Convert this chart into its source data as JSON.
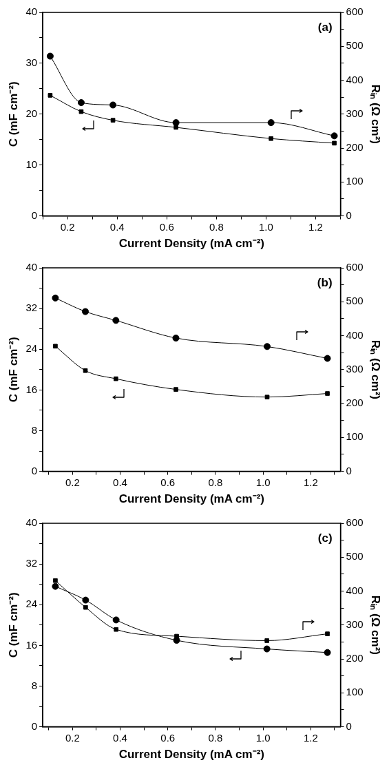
{
  "chart_data": [
    {
      "type": "line",
      "xlabel": "Current Density (mA cm⁻²)",
      "ylabel": "C (mF cm⁻²)",
      "y2label": "Rᵢₙ (Ω cm²)",
      "annotations": [
        "(a)"
      ],
      "xlim": [
        0.1,
        1.3
      ],
      "xticks": [
        {
          "value": 0.1,
          "label": null
        },
        0.2,
        {
          "value": 0.3,
          "label": null
        },
        0.4,
        {
          "value": 0.5,
          "label": null
        },
        0.6,
        {
          "value": 0.7,
          "label": null
        },
        0.8,
        {
          "value": 0.9,
          "label": null
        },
        {
          "value": 1,
          "label": "1.0"
        },
        {
          "value": 1.1,
          "label": null
        },
        1.2,
        {
          "value": 1.3,
          "label": null
        }
      ],
      "ylim": [
        0,
        40
      ],
      "yticks": [
        0,
        {
          "value": 5,
          "label": null
        },
        10,
        {
          "value": 15,
          "label": null
        },
        20,
        {
          "value": 25,
          "label": null
        },
        30,
        {
          "value": 35,
          "label": null
        },
        40
      ],
      "y2lim": [
        0,
        600
      ],
      "y2ticks": [
        0,
        {
          "value": 50,
          "label": null
        },
        100,
        {
          "value": 150,
          "label": null
        },
        200,
        {
          "value": 250,
          "label": null
        },
        300,
        {
          "value": 350,
          "label": null
        },
        400,
        {
          "value": 450,
          "label": null
        },
        500,
        {
          "value": 550,
          "label": null
        },
        600
      ],
      "x": [
        0.13,
        0.255,
        0.383,
        0.637,
        1.02,
        1.275
      ],
      "grid": false,
      "legend": false,
      "series": [
        {
          "color": "#000000",
          "marker": "square",
          "values": [
            23.7,
            20.5,
            18.8,
            17.4,
            15.2,
            14.3
          ]
        },
        {
          "color": "#000000",
          "marker": "circle",
          "axis": "y2",
          "values": [
            471,
            334,
            327,
            275,
            275,
            236
          ]
        }
      ]
    },
    {
      "type": "line",
      "xlabel": "Current Density (mA cm⁻²)",
      "ylabel": "C (mF cm⁻²)",
      "y2label": "Rᵢₙ (Ω cm²)",
      "annotations": [
        "(b)"
      ],
      "xlim": [
        0.075,
        1.325
      ],
      "xticks": [
        {
          "value": 0.1,
          "label": null
        },
        0.2,
        {
          "value": 0.3,
          "label": null
        },
        0.4,
        {
          "value": 0.5,
          "label": null
        },
        0.6,
        {
          "value": 0.7,
          "label": null
        },
        0.8,
        {
          "value": 0.9,
          "label": null
        },
        {
          "value": 1,
          "label": "1.0"
        },
        {
          "value": 1.1,
          "label": null
        },
        1.2,
        {
          "value": 1.3,
          "label": null
        }
      ],
      "ylim": [
        0,
        40
      ],
      "yticks": [
        0,
        {
          "value": 4,
          "label": null
        },
        8,
        {
          "value": 12,
          "label": null
        },
        16,
        {
          "value": 20,
          "label": null
        },
        24,
        {
          "value": 28,
          "label": null
        },
        32,
        {
          "value": 36,
          "label": null
        },
        40
      ],
      "y2lim": [
        0,
        600
      ],
      "y2ticks": [
        0,
        {
          "value": 50,
          "label": null
        },
        100,
        {
          "value": 150,
          "label": null
        },
        200,
        {
          "value": 250,
          "label": null
        },
        300,
        {
          "value": 350,
          "label": null
        },
        400,
        {
          "value": 450,
          "label": null
        },
        500,
        {
          "value": 550,
          "label": null
        },
        600
      ],
      "x": [
        0.128,
        0.254,
        0.382,
        0.634,
        1.017,
        1.27
      ],
      "grid": false,
      "legend": false,
      "series": [
        {
          "color": "#000000",
          "marker": "square",
          "values": [
            24.6,
            19.8,
            18.2,
            16.1,
            14.6,
            15.3
          ]
        },
        {
          "color": "#000000",
          "marker": "circle",
          "axis": "y2",
          "values": [
            511,
            471,
            445,
            393,
            368,
            333
          ]
        }
      ]
    },
    {
      "type": "line",
      "xlabel": "Current Density (mA cm⁻²)",
      "ylabel": "C (mF cm⁻²)",
      "y2label": "Rᵢₙ (Ω cm²)",
      "annotations": [
        "(c)"
      ],
      "xlim": [
        0.075,
        1.325
      ],
      "xticks": [
        {
          "value": 0.1,
          "label": null
        },
        0.2,
        {
          "value": 0.3,
          "label": null
        },
        0.4,
        {
          "value": 0.5,
          "label": null
        },
        0.6,
        {
          "value": 0.7,
          "label": null
        },
        0.8,
        {
          "value": 0.9,
          "label": null
        },
        {
          "value": 1,
          "label": "1.0"
        },
        {
          "value": 1.1,
          "label": null
        },
        1.2,
        {
          "value": 1.3,
          "label": null
        }
      ],
      "ylim": [
        0,
        40
      ],
      "yticks": [
        0,
        {
          "value": 4,
          "label": null
        },
        8,
        {
          "value": 12,
          "label": null
        },
        16,
        {
          "value": 20,
          "label": null
        },
        24,
        {
          "value": 28,
          "label": null
        },
        32,
        {
          "value": 36,
          "label": null
        },
        40
      ],
      "y2lim": [
        0,
        600
      ],
      "y2ticks": [
        0,
        {
          "value": 50,
          "label": null
        },
        100,
        {
          "value": 150,
          "label": null
        },
        200,
        {
          "value": 250,
          "label": null
        },
        300,
        {
          "value": 350,
          "label": null
        },
        400,
        {
          "value": 450,
          "label": null
        },
        500,
        {
          "value": 550,
          "label": null
        },
        600
      ],
      "x": [
        0.128,
        0.255,
        0.383,
        0.637,
        1.016,
        1.27
      ],
      "grid": false,
      "legend": false,
      "series": [
        {
          "color": "#000000",
          "marker": "circle",
          "values": [
            27.6,
            24.9,
            21.0,
            17.0,
            15.3,
            14.6
          ]
        },
        {
          "color": "#000000",
          "marker": "square",
          "axis": "y2",
          "values": [
            431,
            352,
            287,
            267,
            254,
            274
          ]
        }
      ]
    }
  ]
}
